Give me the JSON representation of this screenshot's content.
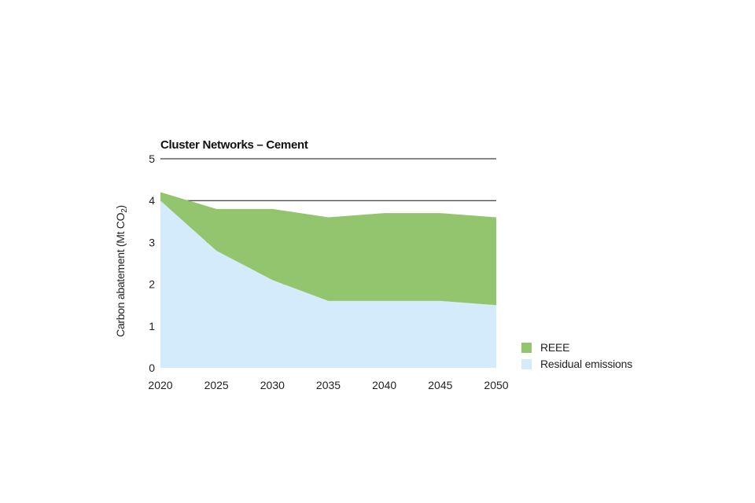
{
  "chart_data": {
    "type": "area",
    "stacked": true,
    "title": "Cluster Networks – Cement",
    "ylabel": "Carbon abatement (Mt CO",
    "ylabel_subscript": "2",
    "ylabel_close": ")",
    "xlabel": "",
    "ylim": [
      0,
      5
    ],
    "yticks": [
      0,
      1,
      2,
      3,
      4,
      5
    ],
    "x": [
      2020,
      2025,
      2030,
      2035,
      2040,
      2045,
      2050
    ],
    "xtick_labels": [
      "2020",
      "2025",
      "2030",
      "2035",
      "2040",
      "2045",
      "2050"
    ],
    "series": [
      {
        "name": "Residual emissions",
        "color": "#d3ebfa",
        "values": [
          4.0,
          2.8,
          2.1,
          1.6,
          1.6,
          1.6,
          1.5
        ]
      },
      {
        "name": "REEE",
        "color": "#93c56e",
        "values": [
          0.2,
          1.0,
          1.7,
          2.0,
          2.1,
          2.1,
          2.1
        ]
      }
    ],
    "legend": [
      {
        "name": "REEE",
        "color": "#93c56e"
      },
      {
        "name": "Residual emissions",
        "color": "#d3ebfa"
      }
    ],
    "legend_position": "right"
  }
}
